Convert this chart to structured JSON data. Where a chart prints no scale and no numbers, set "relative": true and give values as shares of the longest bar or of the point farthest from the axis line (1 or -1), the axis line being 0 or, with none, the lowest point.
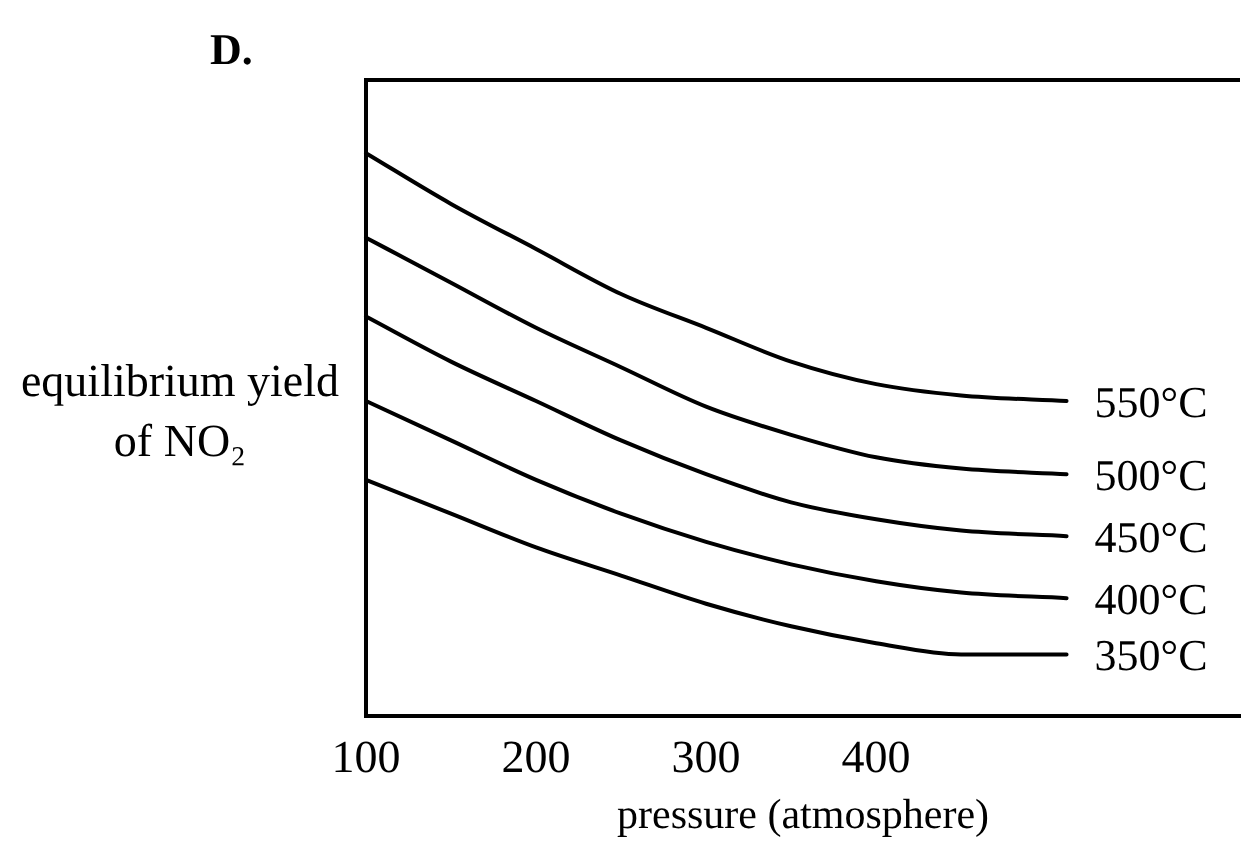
{
  "chart_data": {
    "type": "line",
    "title": "D.",
    "xlabel": "pressure (atmosphere)",
    "ylabel": "equilibrium yield of NO₂",
    "relative": true,
    "x": [
      100,
      150,
      200,
      250,
      300,
      350,
      400,
      450,
      512
    ],
    "xlim": [
      100,
      614
    ],
    "xticks": [
      100,
      200,
      300,
      400
    ],
    "grid": false,
    "legend": false,
    "marker": "none",
    "line_style": "solid",
    "series": [
      {
        "name": "550°C",
        "color": "#000000",
        "values": [
          1,
          0.91,
          0.83,
          0.75,
          0.69,
          0.63,
          0.59,
          0.57,
          0.56
        ]
      },
      {
        "name": "500°C",
        "color": "#000000",
        "values": [
          0.85,
          0.77,
          0.69,
          0.62,
          0.55,
          0.5,
          0.46,
          0.44,
          0.43
        ]
      },
      {
        "name": "450°C",
        "color": "#000000",
        "values": [
          0.71,
          0.63,
          0.56,
          0.49,
          0.43,
          0.38,
          0.35,
          0.33,
          0.32
        ]
      },
      {
        "name": "400°C",
        "color": "#000000",
        "values": [
          0.56,
          0.49,
          0.42,
          0.36,
          0.31,
          0.27,
          0.24,
          0.22,
          0.21
        ]
      },
      {
        "name": "350°C",
        "color": "#000000",
        "values": [
          0.42,
          0.36,
          0.3,
          0.25,
          0.2,
          0.16,
          0.13,
          0.11,
          0.11
        ]
      }
    ]
  }
}
